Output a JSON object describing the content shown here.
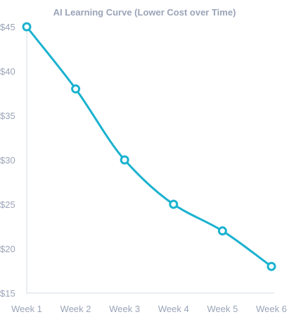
{
  "chart_data": {
    "type": "line",
    "title": "AI Learning Curve (Lower Cost over Time)",
    "xlabel": "",
    "ylabel": "",
    "categories": [
      "Week 1",
      "Week 2",
      "Week 3",
      "Week 4",
      "Week 5",
      "Week 6"
    ],
    "values": [
      45,
      38,
      30,
      25,
      22,
      18
    ],
    "ylim": [
      15,
      45
    ],
    "yticks": [
      15,
      20,
      25,
      30,
      35,
      40,
      45
    ],
    "ytick_labels": [
      "$15",
      "$20",
      "$25",
      "$30",
      "$35",
      "$40",
      "$45"
    ],
    "grid": false,
    "legend": "none",
    "colors": {
      "line": "#1ab2cf",
      "axis": "#e3e7ee",
      "text": "#9aa4b8"
    }
  }
}
